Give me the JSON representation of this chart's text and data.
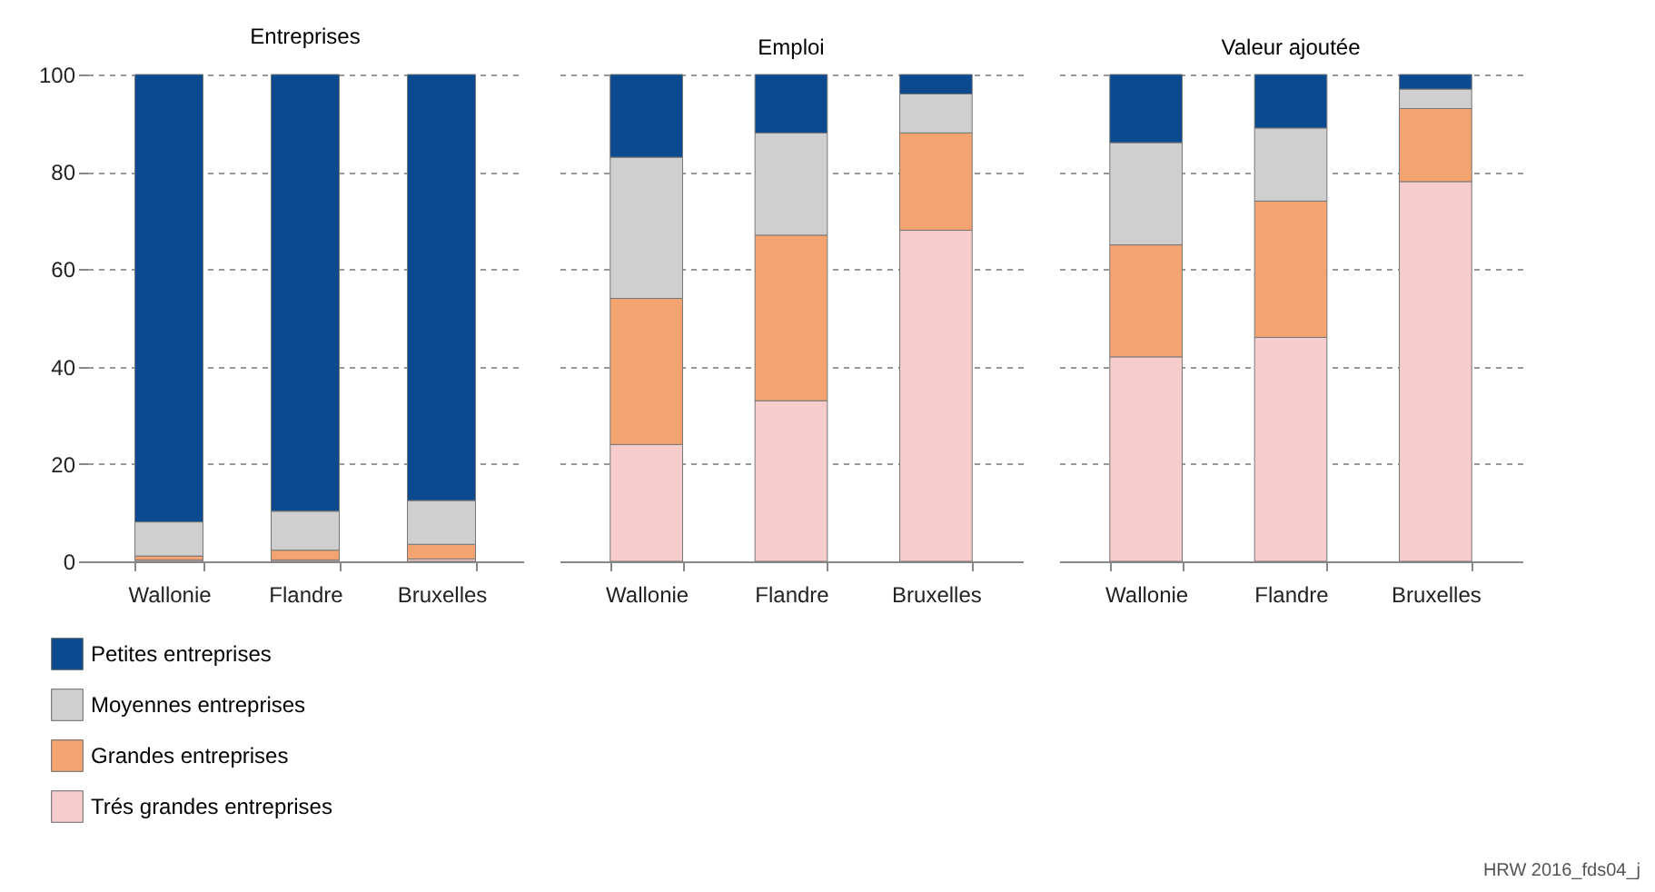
{
  "chart_data": [
    {
      "type": "bar",
      "title": "Entreprises",
      "categories": [
        "Wallonie",
        "Flandre",
        "Bruxelles"
      ],
      "stacked": true,
      "ylim": [
        0,
        100
      ],
      "yticks": [
        0,
        20,
        40,
        60,
        80,
        100
      ],
      "grid": "y",
      "legend": "bottom",
      "series": [
        {
          "name": "Trés grandes entreprises",
          "color": "#f6cccc",
          "values": [
            0.3,
            0.3,
            0.5
          ]
        },
        {
          "name": "Grandes entreprises",
          "color": "#f4a471",
          "values": [
            0.8,
            2,
            3
          ]
        },
        {
          "name": "Moyennes entreprises",
          "color": "#cfcfcf",
          "values": [
            7,
            8,
            9
          ]
        },
        {
          "name": "Petites entreprises",
          "color": "#0b4a8f",
          "values": [
            91.9,
            89.7,
            87.5
          ]
        }
      ]
    },
    {
      "type": "bar",
      "title": "Emploi",
      "categories": [
        "Wallonie",
        "Flandre",
        "Bruxelles"
      ],
      "stacked": true,
      "ylim": [
        0,
        100
      ],
      "yticks": [
        0,
        20,
        40,
        60,
        80,
        100
      ],
      "grid": "y",
      "tick_labels": "x",
      "series": [
        {
          "color": "#f6cccc",
          "values": [
            24,
            33,
            68
          ]
        },
        {
          "color": "#f4a471",
          "values": [
            30,
            34,
            20
          ]
        },
        {
          "color": "#cfcfcf",
          "values": [
            29,
            21,
            8
          ]
        },
        {
          "color": "#0b4a8f",
          "values": [
            17,
            12,
            4
          ]
        }
      ]
    },
    {
      "type": "bar",
      "title": "Valeur ajoutée",
      "categories": [
        "Wallonie",
        "Flandre",
        "Bruxelles"
      ],
      "stacked": true,
      "ylim": [
        0,
        100
      ],
      "yticks": [
        0,
        20,
        40,
        60,
        80,
        100
      ],
      "grid": "y",
      "tick_labels": "x",
      "annotations": [
        "HRW 2016_fds04_j"
      ],
      "series": [
        {
          "color": "#f6cccc",
          "values": [
            42,
            46,
            78
          ]
        },
        {
          "color": "#f4a471",
          "values": [
            23,
            28,
            15
          ]
        },
        {
          "color": "#cfcfcf",
          "values": [
            21,
            15,
            4
          ]
        },
        {
          "color": "#0b4a8f",
          "values": [
            14,
            11,
            3
          ]
        }
      ]
    }
  ]
}
